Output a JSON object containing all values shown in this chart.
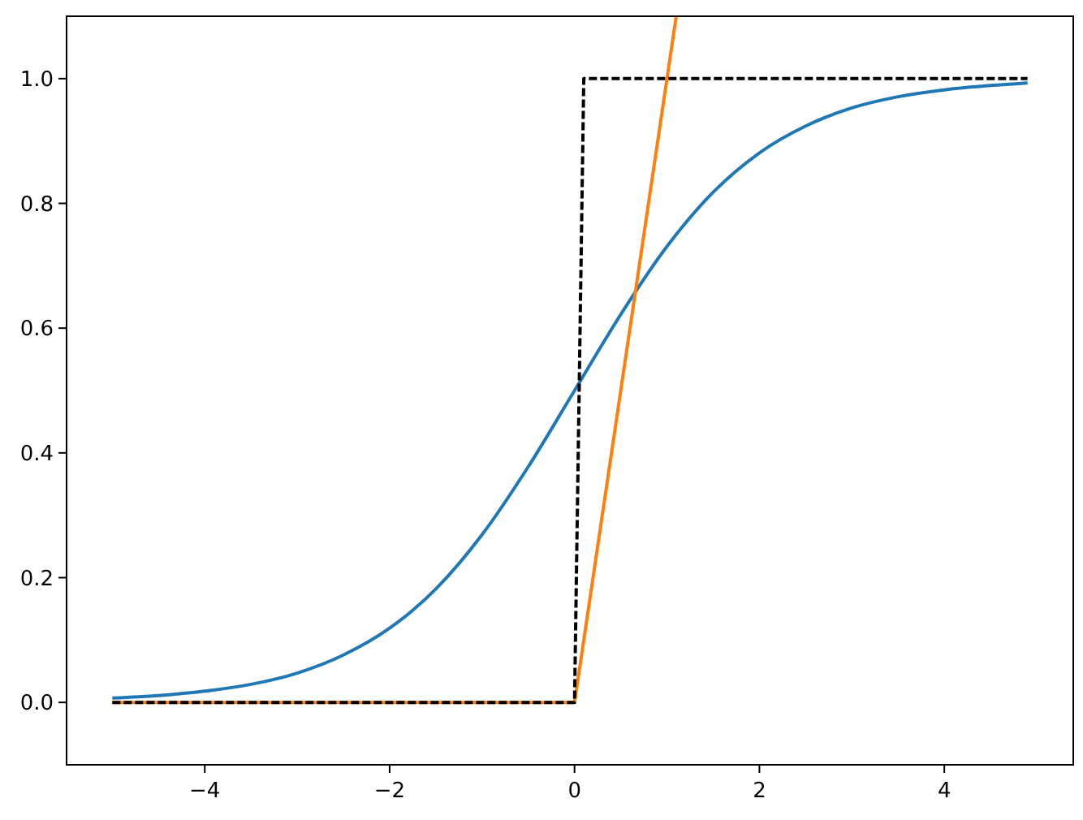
{
  "chart_data": {
    "type": "line",
    "xlim": [
      -5.495,
      5.395
    ],
    "ylim": [
      -0.1,
      1.1
    ],
    "xticks": [
      {
        "value": -4,
        "label": "−4"
      },
      {
        "value": -2,
        "label": "−2"
      },
      {
        "value": 0,
        "label": "0"
      },
      {
        "value": 2,
        "label": "2"
      },
      {
        "value": 4,
        "label": "4"
      }
    ],
    "yticks": [
      {
        "value": 0,
        "label": "0.0"
      },
      {
        "value": 0.2,
        "label": "0.2"
      },
      {
        "value": 0.4,
        "label": "0.4"
      },
      {
        "value": 0.6,
        "label": "0.6"
      },
      {
        "value": 0.8,
        "label": "0.8"
      },
      {
        "value": 1,
        "label": "1.0"
      }
    ],
    "grid": false,
    "marker": "none",
    "series": [
      {
        "color": "#1f77b4",
        "line_style": "solid",
        "x": [
          -5,
          -4.5,
          -4,
          -3.5,
          -3,
          -2.5,
          -2,
          -1.5,
          -1,
          -0.5,
          0,
          0.5,
          1,
          1.5,
          2,
          2.5,
          3,
          3.5,
          4,
          4.5,
          4.9
        ],
        "values": [
          0.007,
          0.011,
          0.018,
          0.029,
          0.047,
          0.076,
          0.119,
          0.182,
          0.269,
          0.378,
          0.5,
          0.622,
          0.731,
          0.818,
          0.881,
          0.924,
          0.953,
          0.971,
          0.982,
          0.989,
          0.993
        ]
      },
      {
        "color": "#ff7f0e",
        "line_style": "solid",
        "x": [
          -5,
          0,
          1.1
        ],
        "values": [
          0,
          0,
          1.1
        ]
      },
      {
        "color": "#000000",
        "line_style": "dashed",
        "x": [
          -5,
          0,
          0.1,
          4.9
        ],
        "values": [
          0,
          0,
          1,
          1
        ]
      }
    ]
  }
}
